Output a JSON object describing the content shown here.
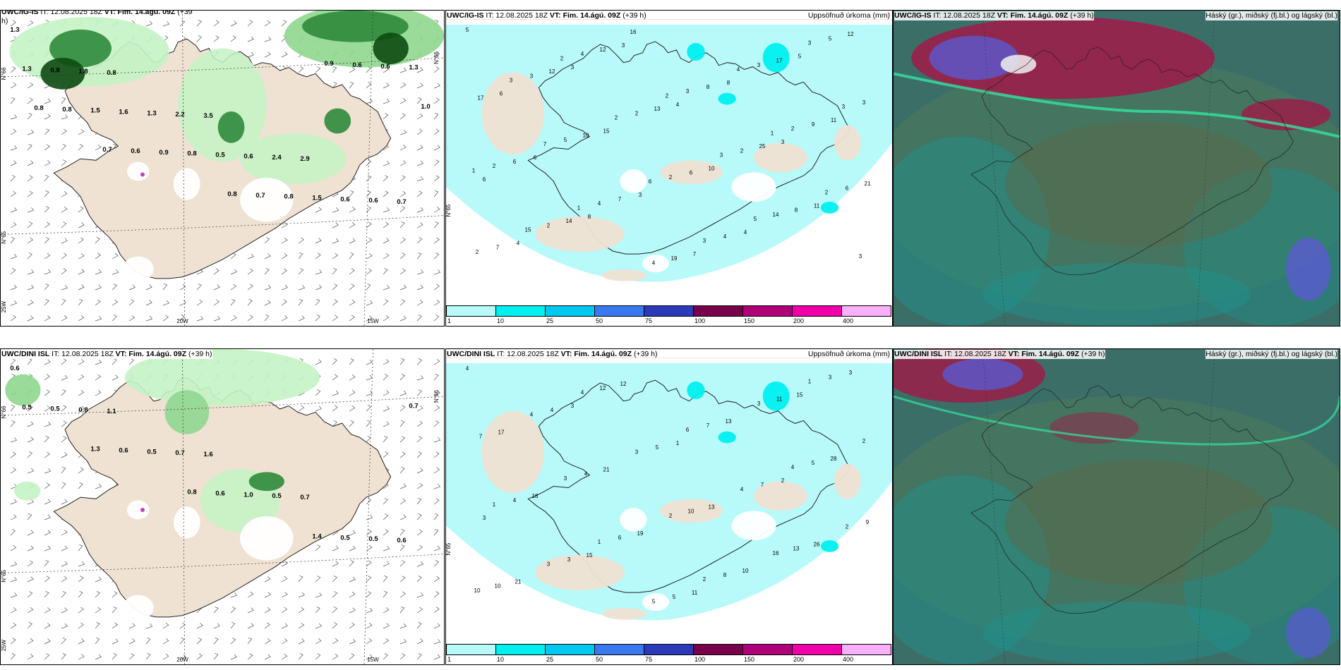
{
  "colors": {
    "land": "#efe2d3",
    "precip_light": "#c4f3c4",
    "precip_med": "#8fd78f",
    "precip_dark": "#2f8a3a",
    "precip_darkest": "#0d4a12",
    "cyan": "#b8fafa",
    "cloud_base": "#3c6e68",
    "cloud_teal": "#1f8f8a",
    "cloud_green": "#35e3a0",
    "cloud_red": "#9a1f4a",
    "cloud_blue": "#5a5ad0"
  },
  "legend": {
    "colors": [
      "#b8fafa",
      "#00f0f0",
      "#00c8f0",
      "#3a78f0",
      "#2a3ab8",
      "#78004a",
      "#b0007a",
      "#f000a8",
      "#f8b0f8"
    ],
    "labels": [
      "1",
      "10",
      "25",
      "50",
      "75",
      "100",
      "150",
      "200",
      "400"
    ]
  },
  "rows": [
    {
      "p1": {
        "title_model": "UWC/IG-IS",
        "title_it": " IT: 12.08.2025 18Z ",
        "title_vt": "VT: Fim. 14.ágú. 09Z",
        "title_lead": " (+39",
        "title_cont": "h)",
        "axis": {
          "lat_top": "N°66",
          "lat_bot": "N°65",
          "corner": "25W",
          "lon1": "20W",
          "lon2": "15W",
          "lat_right": "N°66"
        },
        "values": [
          "1.3",
          "0.8",
          "3.5",
          "2.9",
          "0.7",
          "1.8",
          "2.2",
          "2.4",
          "0.6",
          "0.8",
          "1.3",
          "0.6",
          "0.6",
          "1.3",
          "1.6",
          "0.5",
          "1.5",
          "1.3",
          "1.5",
          "0.8",
          "0.8",
          "0.6",
          "0.8",
          "0.9",
          "0.7",
          "0.6",
          "0.8",
          "0.6",
          "0.8",
          "0.9",
          "1.0",
          "0.7"
        ]
      },
      "p2": {
        "title_model": "UWC/IG-IS",
        "title_it": " IT: 12.08.2025 18Z ",
        "title_vt": "VT: Fim. 14.ágú. 09Z",
        "title_lead": " (+39 h)",
        "right_label": "Uppsöfnuð úrkoma (mm)",
        "axis": {
          "lat": "N°65"
        },
        "values": [
          "5",
          "3",
          "4",
          "3",
          "6",
          "8",
          "7",
          "5",
          "6",
          "15",
          "10",
          "11",
          "4",
          "3",
          "8",
          "11",
          "6",
          "3",
          "4",
          "12",
          "12",
          "13",
          "25",
          "21",
          "14",
          "19",
          "17",
          "17",
          "10",
          "6",
          "8",
          "7",
          "12",
          "8",
          "9",
          "6",
          "7",
          "4",
          "5",
          "3",
          "2",
          "2",
          "6",
          "2",
          "4",
          "3",
          "3",
          "5",
          "2",
          "14",
          "2",
          "4",
          "3",
          "2",
          "2",
          "4",
          "3",
          "3",
          "3",
          "2",
          "3",
          "2",
          "15",
          "16",
          "4",
          "3",
          "7",
          "6",
          "5",
          "3",
          "2",
          "2",
          "1",
          "1",
          "1"
        ]
      },
      "p3": {
        "title_model": "UWC/IG-IS",
        "title_it": " IT: 12.08.2025 18Z ",
        "title_vt": "VT: Fim. 14.ágú. 09Z",
        "title_lead": " (+39 h)",
        "right_label": "Háský (gr.), miðský (fj.bl.) og lágský (bl.)"
      }
    },
    {
      "p1": {
        "title_model": "UWC/DINI ISL",
        "title_it": " IT: 12.08.2025 18Z ",
        "title_vt": "VT: Fim. 14.ágú. 09Z",
        "title_lead": " (+39 h)",
        "title_cont": "",
        "axis": {
          "lat_top": "N°66",
          "lat_bot": "N°65",
          "corner": "25W",
          "lon1": "20W",
          "lon2": "15W",
          "lat_right": "N°66"
        },
        "values": [
          "0.6",
          "1.1",
          "1.6",
          "0.7",
          "0.6",
          "0.8",
          "0.7",
          "0.5",
          "0.5",
          "0.5",
          "0.5",
          "1.0",
          "0.5",
          "0.5",
          "0.6",
          "0.6",
          "1.4",
          "0.7",
          "1.3",
          "0.8"
        ]
      },
      "p2": {
        "title_model": "UWC/DINI ISL",
        "title_it": " IT: 12.08.2025 18Z ",
        "title_vt": "VT: Fim. 14.ágú. 09Z",
        "title_lead": " (+39 h)",
        "right_label": "Uppsöfnuð úrkoma (mm)",
        "axis": {
          "lat": "N°65"
        },
        "values": [
          "4",
          "3",
          "1",
          "2",
          "3",
          "15",
          "11",
          "15",
          "17",
          "21",
          "13",
          "26",
          "21",
          "12",
          "13",
          "28",
          "18",
          "19",
          "10",
          "3",
          "4",
          "5",
          "7",
          "9",
          "3",
          "5",
          "11",
          "7",
          "4",
          "10",
          "13",
          "10",
          "12",
          "7",
          "5",
          "4",
          "6",
          "8",
          "3",
          "4",
          "3",
          "4",
          "2",
          "3",
          "5",
          "3",
          "2",
          "3",
          "2",
          "16",
          "10",
          "4",
          "6",
          "4",
          "1",
          "1",
          "2",
          "1"
        ]
      },
      "p3": {
        "title_model": "UWC/DINI ISL",
        "title_it": " IT: 12.08.2025 18Z ",
        "title_vt": "VT: Fim. 14.ágú. 09Z",
        "title_lead": " (+39 h)",
        "right_label": "Háský (gr.), miðský (fj.bl.) og lágský (bl.)"
      }
    }
  ]
}
